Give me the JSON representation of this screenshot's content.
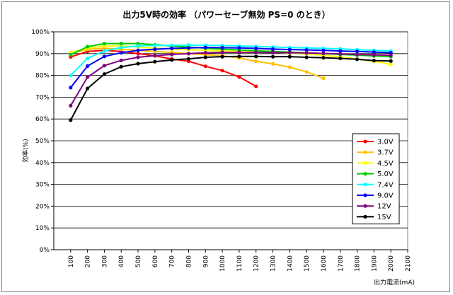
{
  "chart_data": {
    "type": "line",
    "title": "出力5V時の効率 （パワーセーブ無効 PS=0 のとき）",
    "xlabel": "出力電流(mA)",
    "ylabel": "効率(%)",
    "x_ticks": [
      "100",
      "200",
      "300",
      "400",
      "500",
      "600",
      "700",
      "800",
      "900",
      "1000",
      "1100",
      "1200",
      "1300",
      "1400",
      "1500",
      "1600",
      "1700",
      "1800",
      "1900",
      "2000",
      "2100"
    ],
    "y_ticks": [
      "0%",
      "10%",
      "20%",
      "30%",
      "40%",
      "50%",
      "60%",
      "70%",
      "80%",
      "90%",
      "100%"
    ],
    "xlim": [
      0,
      2100
    ],
    "ylim": [
      0,
      100
    ],
    "grid": "horizontal",
    "legend_position": "right",
    "series": [
      {
        "name": "3.0V",
        "color": "#ff0000",
        "x": [
          100,
          200,
          300,
          400,
          500,
          600,
          700,
          800,
          900,
          1000,
          1100,
          1200
        ],
        "values": [
          88.5,
          91,
          91.5,
          91,
          90,
          89,
          87.5,
          86.5,
          84.2,
          82.2,
          79.3,
          75
        ]
      },
      {
        "name": "3.7V",
        "color": "#ffc000",
        "x": [
          100,
          200,
          300,
          400,
          500,
          600,
          700,
          800,
          900,
          1000,
          1100,
          1200,
          1300,
          1400,
          1500,
          1600
        ],
        "values": [
          90,
          92,
          92.5,
          92,
          91.5,
          91,
          90.5,
          90,
          89.5,
          89,
          88,
          86.5,
          85.3,
          83.8,
          81.6,
          78.7
        ]
      },
      {
        "name": "4.5V",
        "color": "#ffff00",
        "x": [
          100,
          200,
          300,
          400,
          500,
          600,
          700,
          800,
          900,
          1000,
          1100,
          1200,
          1300,
          1400,
          1500,
          1600,
          1700,
          1800,
          1900,
          2000
        ],
        "values": [
          90.5,
          92.5,
          93.5,
          93.5,
          93,
          92.5,
          92,
          91.8,
          91.5,
          91.2,
          91,
          90.8,
          90.5,
          90.2,
          89.8,
          89.2,
          88.5,
          87.5,
          86.5,
          85
        ]
      },
      {
        "name": "5.0V",
        "color": "#00cc00",
        "x": [
          100,
          200,
          300,
          400,
          500,
          600,
          700,
          800,
          900,
          1000,
          1100,
          1200,
          1300,
          1400,
          1500,
          1600,
          1700,
          1800,
          1900,
          2000
        ],
        "values": [
          89.5,
          93.2,
          94.6,
          94.6,
          94.6,
          94.1,
          93.5,
          93,
          92.5,
          92,
          91.7,
          91.3,
          91,
          90.7,
          90.4,
          90,
          89.6,
          89.3,
          88.9,
          88.6
        ]
      },
      {
        "name": "7.4V",
        "color": "#00ffff",
        "x": [
          100,
          200,
          300,
          400,
          500,
          600,
          700,
          800,
          900,
          1000,
          1100,
          1200,
          1300,
          1400,
          1500,
          1600,
          1700,
          1800,
          1900,
          2000
        ],
        "values": [
          80,
          87.8,
          91.2,
          92.8,
          93.5,
          93.8,
          93.8,
          93.9,
          93.8,
          93.7,
          93.5,
          93.3,
          93,
          92.8,
          92.6,
          92.4,
          92.2,
          91.8,
          91.5,
          91.2
        ]
      },
      {
        "name": "9.0V",
        "color": "#0000ff",
        "x": [
          100,
          200,
          300,
          400,
          500,
          600,
          700,
          800,
          900,
          1000,
          1100,
          1200,
          1300,
          1400,
          1500,
          1600,
          1700,
          1800,
          1900,
          2000
        ],
        "values": [
          74.4,
          84.3,
          88.7,
          90.4,
          91.5,
          92,
          92.4,
          92.6,
          92.8,
          92.7,
          92.6,
          92.4,
          92.1,
          91.9,
          91.7,
          91.5,
          91.2,
          91,
          90.7,
          90.4
        ]
      },
      {
        "name": "12V",
        "color": "#800080",
        "x": [
          100,
          200,
          300,
          400,
          500,
          600,
          700,
          800,
          900,
          1000,
          1100,
          1200,
          1300,
          1400,
          1500,
          1600,
          1700,
          1800,
          1900,
          2000
        ],
        "values": [
          66.1,
          79.2,
          84.5,
          86.9,
          88.3,
          89.1,
          89.6,
          90,
          90.4,
          90.6,
          90.6,
          90.6,
          90.5,
          90.4,
          90.3,
          90.1,
          89.9,
          89.6,
          89.4,
          89.2
        ]
      },
      {
        "name": "15V",
        "color": "#000000",
        "x": [
          100,
          200,
          300,
          400,
          500,
          600,
          700,
          800,
          900,
          1000,
          1100,
          1200,
          1300,
          1400,
          1500,
          1600,
          1700,
          1800,
          1900,
          2000
        ],
        "values": [
          59.5,
          74,
          80.6,
          84,
          85.4,
          86.3,
          87.1,
          87.6,
          88.3,
          88.6,
          88.7,
          88.7,
          88.6,
          88.6,
          88.3,
          88.1,
          87.8,
          87.4,
          86.8,
          86.6
        ]
      }
    ]
  }
}
